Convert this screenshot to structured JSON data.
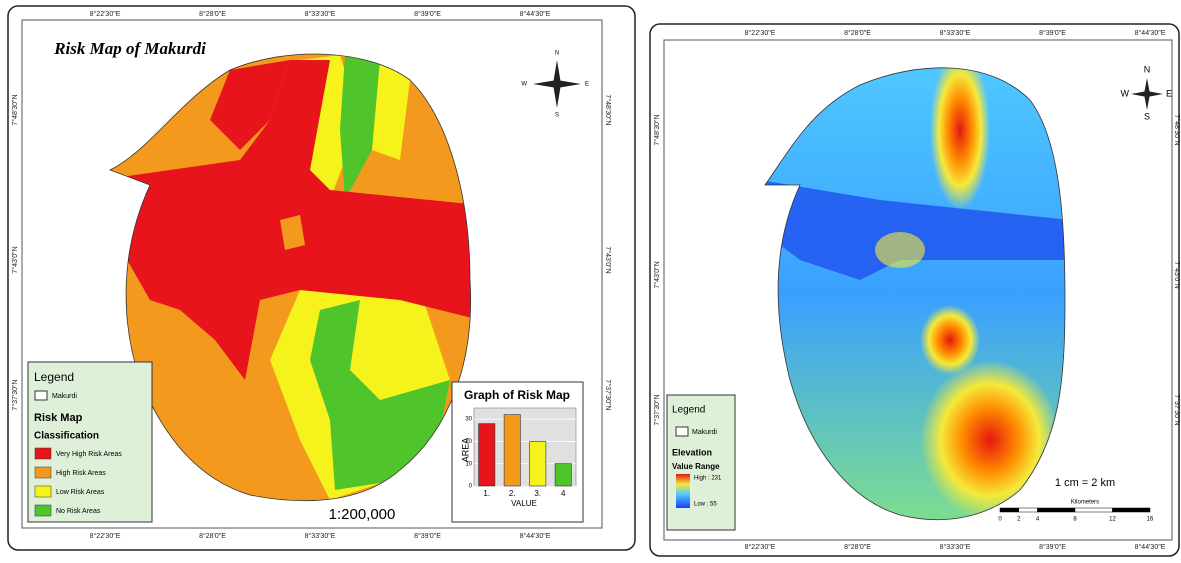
{
  "left_map": {
    "title": "Risk Map of Makurdi",
    "top_coords": [
      "8°22'30\"E",
      "8°28'0\"E",
      "8°33'30\"E",
      "8°39'0\"E",
      "8°44'30\"E"
    ],
    "bottom_coords": [
      "8°22'30\"E",
      "8°28'0\"E",
      "8°33'30\"E",
      "8°39'0\"E",
      "8°44'30\"E"
    ],
    "side_coords": [
      "7°48'30\"N",
      "7°43'0\"N",
      "7°37'30\"N"
    ],
    "compass": [
      "N",
      "E",
      "S",
      "W"
    ],
    "legend": {
      "title": "Legend",
      "boundary": "Makurdi",
      "layer": "Risk Map",
      "subtitle": "Classification",
      "items": [
        {
          "label": "Very High Risk Areas",
          "color": "#e8141b"
        },
        {
          "label": "High Risk Areas",
          "color": "#f39a1e"
        },
        {
          "label": "Low Risk Areas",
          "color": "#f6f21c"
        },
        {
          "label": "No Risk Areas",
          "color": "#4fc42b"
        }
      ]
    },
    "scale": "1:200,000",
    "graph": {
      "type": "bar",
      "title": "Graph of Risk Map",
      "y_label": "AREA",
      "x_label": "VALUE",
      "categories": [
        "1.",
        "2.",
        "3.",
        "4"
      ],
      "values": [
        28,
        32,
        20,
        10
      ],
      "colors": [
        "#e8141b",
        "#f39a1e",
        "#f6f21c",
        "#4fc42b"
      ],
      "ylim": [
        0,
        35
      ],
      "yticks": [
        0,
        10,
        20,
        30
      ]
    }
  },
  "right_map": {
    "top_coords": [
      "8°22'30\"E",
      "8°28'0\"E",
      "8°33'30\"E",
      "8°39'0\"E",
      "8°44'30\"E"
    ],
    "bottom_coords": [
      "8°22'30\"E",
      "8°28'0\"E",
      "8°33'30\"E",
      "8°39'0\"E",
      "8°44'30\"E"
    ],
    "side_coords": [
      "7°48'30\"N",
      "7°43'0\"N",
      "7°37'30\"N"
    ],
    "compass": [
      "N",
      "E",
      "S",
      "W"
    ],
    "legend": {
      "title": "Legend",
      "boundary": "Makurdi",
      "layer": "Elevation",
      "subtitle": "Value Range",
      "high": "High : 231",
      "low": "Low : 55"
    },
    "scale_text": "1 cm = 2 km",
    "scale_unit": "Kilometers",
    "scale_ticks": [
      0,
      2,
      4,
      8,
      12,
      16
    ]
  }
}
